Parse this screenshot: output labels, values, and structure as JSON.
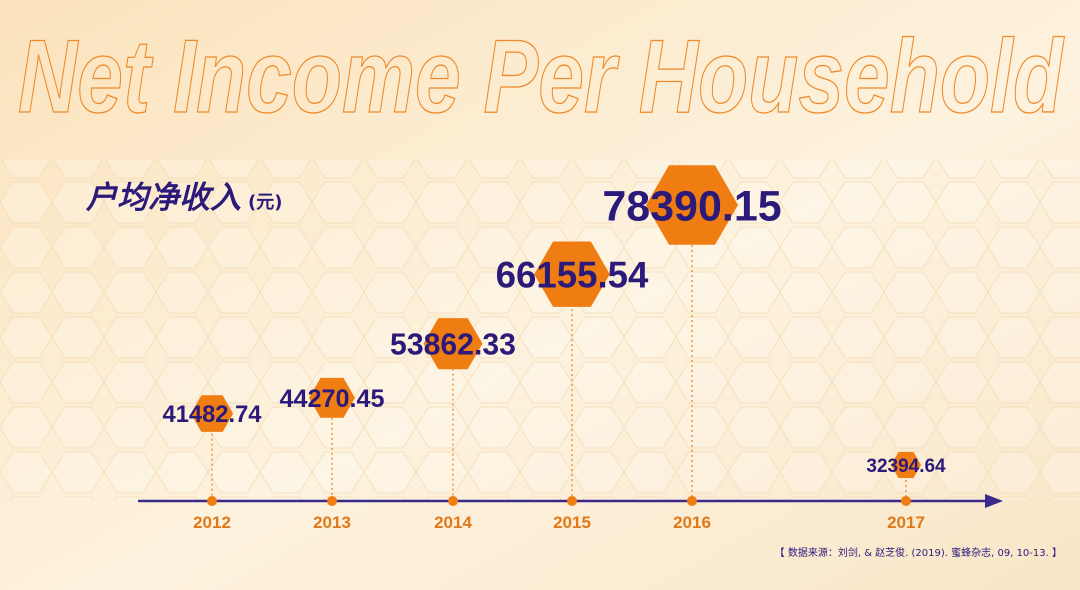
{
  "chart_data": {
    "type": "hexagon-bubble",
    "title": "Net Income Per Household",
    "subtitle": "户均净收入",
    "unit": "(元)",
    "source": "【 数据来源：刘剑, & 赵芝俊. (2019). 蜜蜂杂志, 09, 10-13. 】",
    "categories": [
      "2012",
      "2013",
      "2014",
      "2015",
      "2016",
      "2017"
    ],
    "values": [
      41482.74,
      44270.45,
      53862.33,
      66155.54,
      78390.15,
      32394.64
    ],
    "color": "#f07d12",
    "text_color": "#2b1a7a"
  }
}
